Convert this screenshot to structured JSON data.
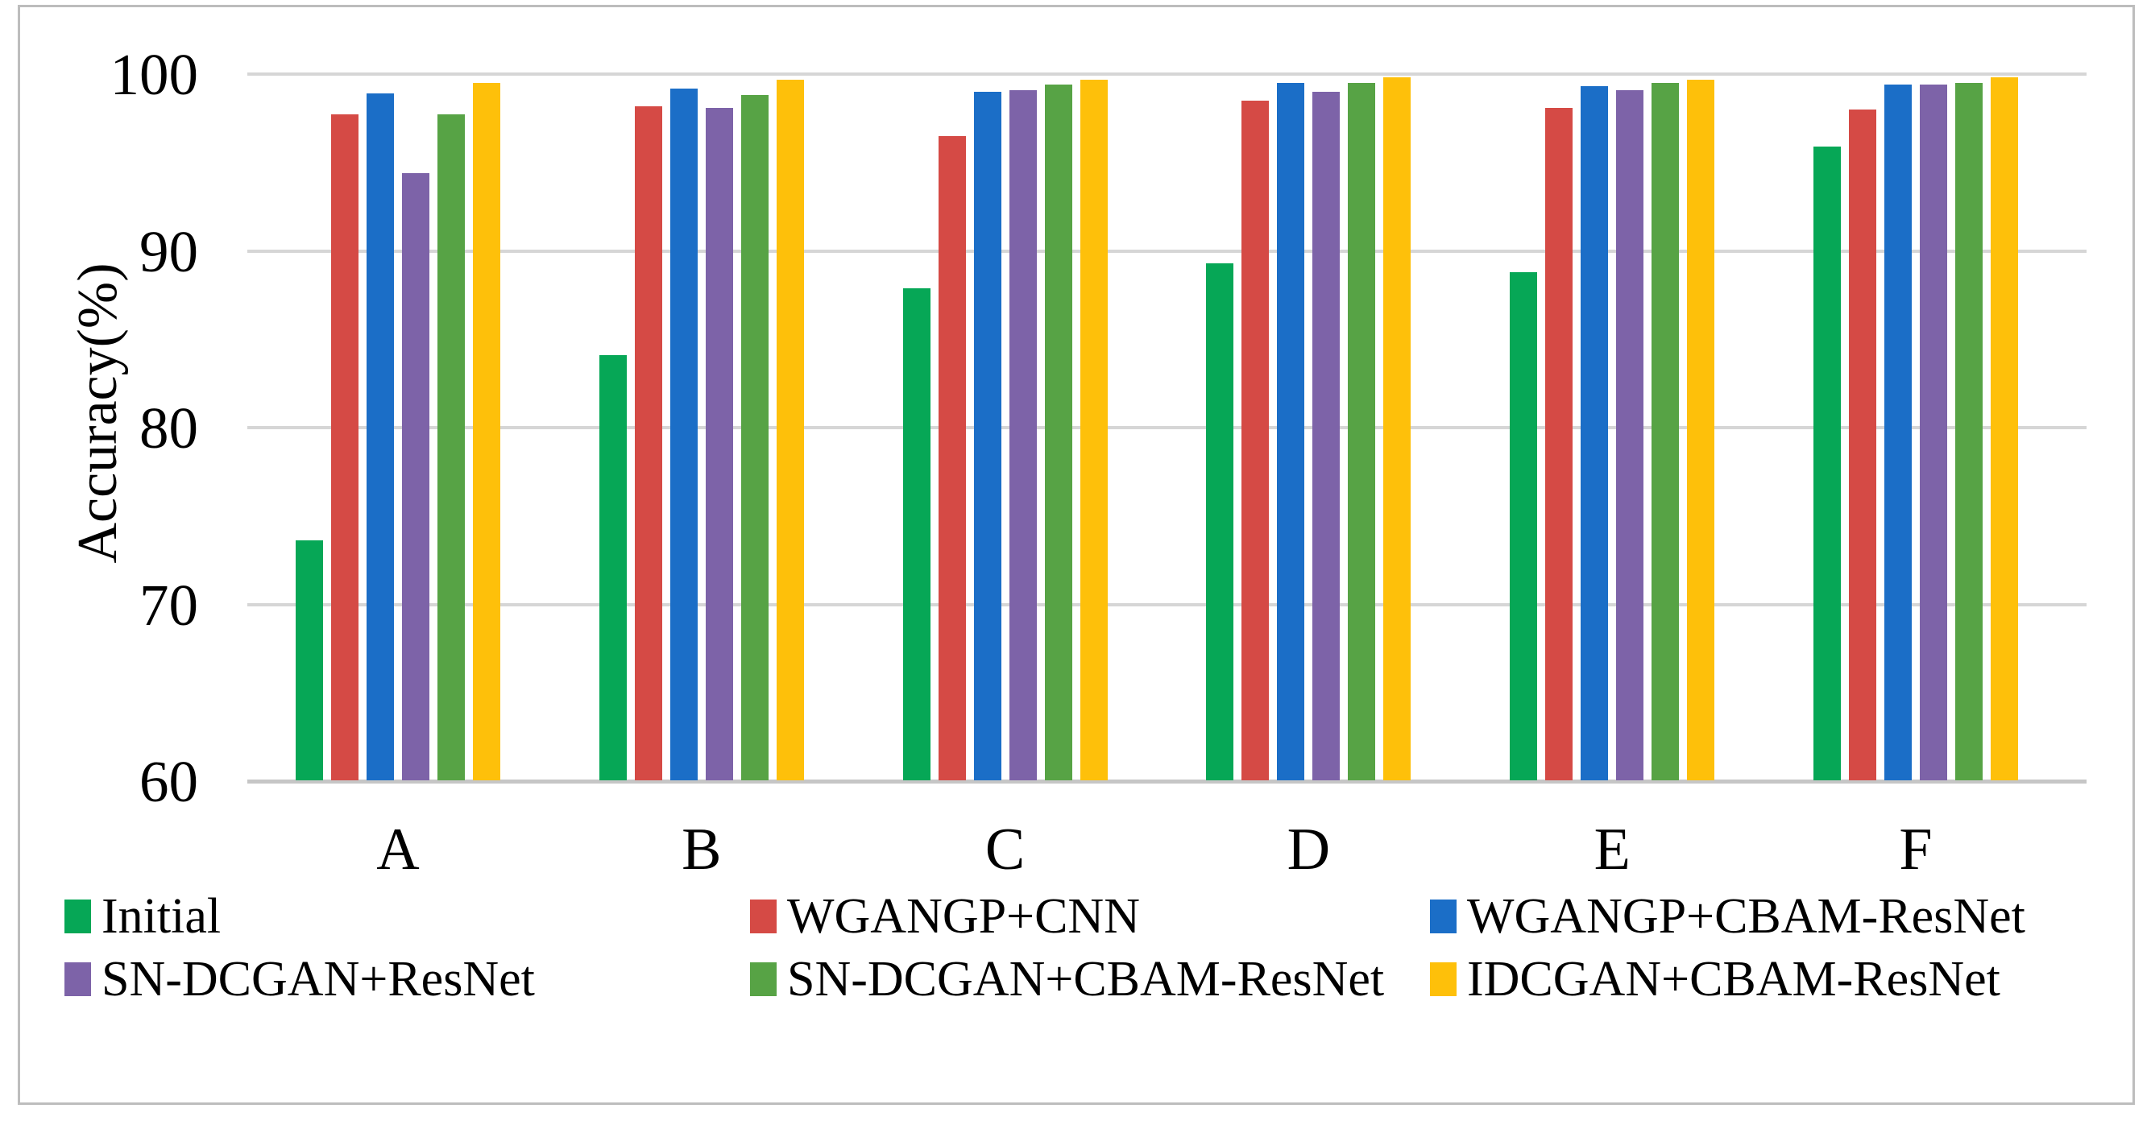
{
  "figure": {
    "background": "#ffffff",
    "border_color": "#bdbdbd",
    "gridline_color": "#d6d6d6",
    "axis_line_color": "#c6c6c6"
  },
  "chart_data": {
    "type": "bar",
    "title": "",
    "xlabel": "",
    "ylabel": "Accuracy(%)",
    "ylim": [
      60,
      100
    ],
    "yticks": [
      100,
      90,
      80,
      70,
      60
    ],
    "ytick_labels": [
      "100",
      "90",
      "80",
      "70",
      "60"
    ],
    "grid": "horizontal-only",
    "legend_position": "bottom",
    "legend_rows": [
      [
        "Initial",
        "WGANGP+CNN",
        "WGANGP+CBAM-ResNet"
      ],
      [
        "SN-DCGAN+ResNet",
        "SN-DCGAN+CBAM-ResNet",
        "IDCGAN+CBAM-ResNet"
      ]
    ],
    "categories": [
      "A",
      "B",
      "C",
      "D",
      "E",
      "F"
    ],
    "series": [
      {
        "name": "Initial",
        "color": "#06a756",
        "values": [
          73.6,
          84.1,
          87.9,
          89.3,
          88.8,
          95.9
        ]
      },
      {
        "name": "WGANGP+CNN",
        "color": "#d54a45",
        "values": [
          97.7,
          98.2,
          96.5,
          98.5,
          98.1,
          98.0
        ]
      },
      {
        "name": "WGANGP+CBAM-ResNet",
        "color": "#1b6ec7",
        "values": [
          98.9,
          99.2,
          99.0,
          99.5,
          99.3,
          99.4
        ]
      },
      {
        "name": "SN-DCGAN+ResNet",
        "color": "#7d63a8",
        "values": [
          94.4,
          98.1,
          99.1,
          99.0,
          99.1,
          99.4
        ]
      },
      {
        "name": "SN-DCGAN+CBAM-ResNet",
        "color": "#57a345",
        "values": [
          97.7,
          98.8,
          99.4,
          99.5,
          99.5,
          99.5
        ]
      },
      {
        "name": "IDCGAN+CBAM-ResNet",
        "color": "#fec00a",
        "values": [
          99.5,
          99.7,
          99.7,
          99.8,
          99.7,
          99.8
        ]
      }
    ]
  }
}
